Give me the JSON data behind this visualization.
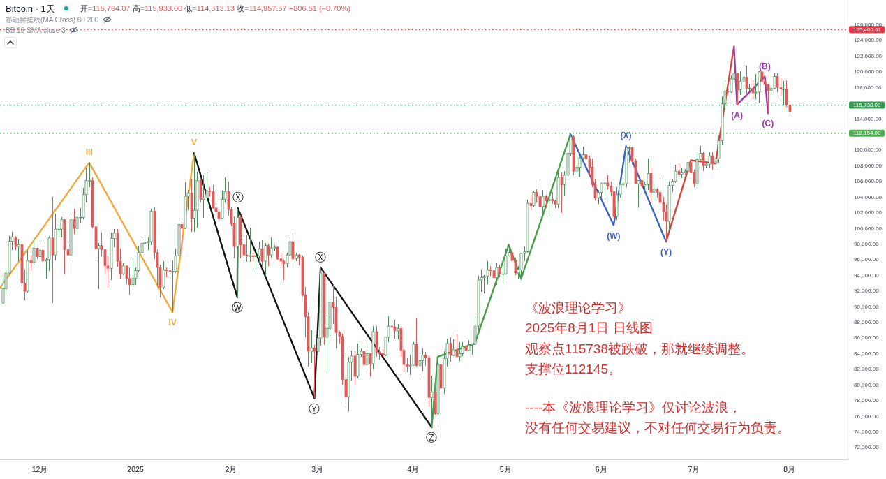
{
  "chart_data": {
    "type": "candlestick",
    "title": "Bitcoin · 1天",
    "subtitle": "开=115,764.07 高=115,933.00 低=114,313.13 收=114,957.57 −806.51 (−0.70%)",
    "xlim": [
      "2024-11-18T02:00",
      "2025-08-19T20:00"
    ],
    "ylim": [
      70480,
      129170
    ],
    "xticks": [
      {
        "value": "2024-12-01",
        "label": "12月"
      },
      {
        "value": "2025-01-01",
        "label": "2025"
      },
      {
        "value": "2025-02-01",
        "label": "2月"
      },
      {
        "value": "2025-03-01",
        "label": "3月"
      },
      {
        "value": "2025-04-01",
        "label": "4月"
      },
      {
        "value": "2025-05-01",
        "label": "5月"
      },
      {
        "value": "2025-06-01",
        "label": "6月"
      },
      {
        "value": "2025-07-01",
        "label": "7月"
      },
      {
        "value": "2025-08-01",
        "label": "8月"
      }
    ],
    "yticks": [
      {
        "value": 72000,
        "label": "72,000.00"
      },
      {
        "value": 74000,
        "label": "74,000.00"
      },
      {
        "value": 76000,
        "label": "76,000.00"
      },
      {
        "value": 78000,
        "label": "78,000.00"
      },
      {
        "value": 80000,
        "label": "80,000.00"
      },
      {
        "value": 82000,
        "label": "82,000.00"
      },
      {
        "value": 84000,
        "label": "84,000.00"
      },
      {
        "value": 86000,
        "label": "86,000.00"
      },
      {
        "value": 88000,
        "label": "88,000.00"
      },
      {
        "value": 90000,
        "label": "90,000.00"
      },
      {
        "value": 92000,
        "label": "92,000.00"
      },
      {
        "value": 94000,
        "label": "94,000.00"
      },
      {
        "value": 96000,
        "label": "96,000.00"
      },
      {
        "value": 98000,
        "label": "98,000.00"
      },
      {
        "value": 100000,
        "label": "100,000.00"
      },
      {
        "value": 102000,
        "label": "102,000.00"
      },
      {
        "value": 104000,
        "label": "104,000.00"
      },
      {
        "value": 106000,
        "label": "106,000.00"
      },
      {
        "value": 108000,
        "label": "108,000.00"
      },
      {
        "value": 110000,
        "label": "110,000.00"
      },
      {
        "value": 114000,
        "label": "114,000.00"
      },
      {
        "value": 118000,
        "label": "118,000.00"
      },
      {
        "value": 120000,
        "label": "120,000.00"
      },
      {
        "value": 122000,
        "label": "122,000.00"
      },
      {
        "value": 124000,
        "label": "124,000.00"
      },
      {
        "value": 126000,
        "label": "126,000.00"
      }
    ],
    "x": [
      "2024-11-19",
      "2024-11-20",
      "2024-11-21",
      "2024-11-22",
      "2024-11-23",
      "2024-11-24",
      "2024-11-25",
      "2024-11-26",
      "2024-11-27",
      "2024-11-28",
      "2024-11-29",
      "2024-11-30",
      "2024-12-01",
      "2024-12-02",
      "2024-12-03",
      "2024-12-04",
      "2024-12-05",
      "2024-12-06",
      "2024-12-07",
      "2024-12-08",
      "2024-12-09",
      "2024-12-10",
      "2024-12-11",
      "2024-12-12",
      "2024-12-13",
      "2024-12-14",
      "2024-12-15",
      "2024-12-16",
      "2024-12-17",
      "2024-12-18",
      "2024-12-19",
      "2024-12-20",
      "2024-12-21",
      "2024-12-22",
      "2024-12-23",
      "2024-12-24",
      "2024-12-25",
      "2024-12-26",
      "2024-12-27",
      "2024-12-28",
      "2024-12-29",
      "2024-12-30",
      "2024-12-31",
      "2025-01-01",
      "2025-01-02",
      "2025-01-03",
      "2025-01-04",
      "2025-01-05",
      "2025-01-06",
      "2025-01-07",
      "2025-01-08",
      "2025-01-09",
      "2025-01-10",
      "2025-01-11",
      "2025-01-12",
      "2025-01-13",
      "2025-01-14",
      "2025-01-15",
      "2025-01-16",
      "2025-01-17",
      "2025-01-18",
      "2025-01-19",
      "2025-01-20",
      "2025-01-21",
      "2025-01-22",
      "2025-01-23",
      "2025-01-24",
      "2025-01-25",
      "2025-01-26",
      "2025-01-27",
      "2025-01-28",
      "2025-01-29",
      "2025-01-30",
      "2025-01-31",
      "2025-02-01",
      "2025-02-02",
      "2025-02-03",
      "2025-02-04",
      "2025-02-05",
      "2025-02-06",
      "2025-02-07",
      "2025-02-08",
      "2025-02-09",
      "2025-02-10",
      "2025-02-11",
      "2025-02-12",
      "2025-02-13",
      "2025-02-14",
      "2025-02-15",
      "2025-02-16",
      "2025-02-17",
      "2025-02-18",
      "2025-02-19",
      "2025-02-20",
      "2025-02-21",
      "2025-02-22",
      "2025-02-23",
      "2025-02-24",
      "2025-02-25",
      "2025-02-26",
      "2025-02-27",
      "2025-02-28",
      "2025-03-01",
      "2025-03-02",
      "2025-03-03",
      "2025-03-04",
      "2025-03-05",
      "2025-03-06",
      "2025-03-07",
      "2025-03-08",
      "2025-03-09",
      "2025-03-10",
      "2025-03-11",
      "2025-03-12",
      "2025-03-13",
      "2025-03-14",
      "2025-03-15",
      "2025-03-16",
      "2025-03-17",
      "2025-03-18",
      "2025-03-19",
      "2025-03-20",
      "2025-03-21",
      "2025-03-22",
      "2025-03-23",
      "2025-03-24",
      "2025-03-25",
      "2025-03-26",
      "2025-03-27",
      "2025-03-28",
      "2025-03-29",
      "2025-03-30",
      "2025-03-31",
      "2025-04-01",
      "2025-04-02",
      "2025-04-03",
      "2025-04-04",
      "2025-04-05",
      "2025-04-06",
      "2025-04-07",
      "2025-04-08",
      "2025-04-09",
      "2025-04-10",
      "2025-04-11",
      "2025-04-12",
      "2025-04-13",
      "2025-04-14",
      "2025-04-15",
      "2025-04-16",
      "2025-04-17",
      "2025-04-18",
      "2025-04-19",
      "2025-04-20",
      "2025-04-21",
      "2025-04-22",
      "2025-04-23",
      "2025-04-24",
      "2025-04-25",
      "2025-04-26",
      "2025-04-27",
      "2025-04-28",
      "2025-04-29",
      "2025-04-30",
      "2025-05-01",
      "2025-05-02",
      "2025-05-03",
      "2025-05-04",
      "2025-05-05",
      "2025-05-06",
      "2025-05-07",
      "2025-05-08",
      "2025-05-09",
      "2025-05-10",
      "2025-05-11",
      "2025-05-12",
      "2025-05-13",
      "2025-05-14",
      "2025-05-15",
      "2025-05-16",
      "2025-05-17",
      "2025-05-18",
      "2025-05-19",
      "2025-05-20",
      "2025-05-21",
      "2025-05-22",
      "2025-05-23",
      "2025-05-24",
      "2025-05-25",
      "2025-05-26",
      "2025-05-27",
      "2025-05-28",
      "2025-05-29",
      "2025-05-30",
      "2025-05-31",
      "2025-06-01",
      "2025-06-02",
      "2025-06-03",
      "2025-06-04",
      "2025-06-05",
      "2025-06-06",
      "2025-06-07",
      "2025-06-08",
      "2025-06-09",
      "2025-06-10",
      "2025-06-11",
      "2025-06-12",
      "2025-06-13",
      "2025-06-14",
      "2025-06-15",
      "2025-06-16",
      "2025-06-17",
      "2025-06-18",
      "2025-06-19",
      "2025-06-20",
      "2025-06-21",
      "2025-06-22",
      "2025-06-23",
      "2025-06-24",
      "2025-06-25",
      "2025-06-26",
      "2025-06-27",
      "2025-06-28",
      "2025-06-29",
      "2025-06-30",
      "2025-07-01",
      "2025-07-02",
      "2025-07-03",
      "2025-07-04",
      "2025-07-05",
      "2025-07-06",
      "2025-07-07",
      "2025-07-08",
      "2025-07-09",
      "2025-07-10",
      "2025-07-11",
      "2025-07-12",
      "2025-07-13",
      "2025-07-14",
      "2025-07-15",
      "2025-07-16",
      "2025-07-17",
      "2025-07-18",
      "2025-07-19",
      "2025-07-20",
      "2025-07-21",
      "2025-07-22",
      "2025-07-23",
      "2025-07-24",
      "2025-07-25",
      "2025-07-26",
      "2025-07-27",
      "2025-07-28",
      "2025-07-29",
      "2025-07-30",
      "2025-07-31",
      "2025-08-01"
    ],
    "ohlc": [
      [
        90470,
        94000,
        90400,
        92300
      ],
      [
        92300,
        94900,
        91500,
        94290
      ],
      [
        94290,
        99000,
        94100,
        98350
      ],
      [
        98350,
        99600,
        97200,
        98900
      ],
      [
        98900,
        99000,
        97200,
        97700
      ],
      [
        97700,
        98600,
        95800,
        97900
      ],
      [
        97900,
        98900,
        92600,
        93000
      ],
      [
        93000,
        94700,
        90800,
        91970
      ],
      [
        91970,
        97200,
        91800,
        95900
      ],
      [
        95900,
        96650,
        94600,
        95640
      ],
      [
        95640,
        98700,
        95300,
        97460
      ],
      [
        97460,
        97500,
        96100,
        96400
      ],
      [
        96400,
        98000,
        95700,
        97200
      ],
      [
        97200,
        98200,
        94200,
        95840
      ],
      [
        95840,
        96300,
        93600,
        96000
      ],
      [
        96000,
        99000,
        94600,
        98770
      ],
      [
        98770,
        104000,
        90500,
        96600
      ],
      [
        96600,
        101900,
        95900,
        99900
      ],
      [
        99900,
        100500,
        98800,
        99900
      ],
      [
        99900,
        101400,
        98800,
        101100
      ],
      [
        101100,
        101200,
        94200,
        97300
      ],
      [
        97300,
        98300,
        94200,
        96600
      ],
      [
        96600,
        101900,
        95700,
        101100
      ],
      [
        101100,
        102500,
        99300,
        100000
      ],
      [
        100000,
        101900,
        99200,
        101400
      ],
      [
        101400,
        102600,
        100600,
        101400
      ],
      [
        101400,
        105200,
        101200,
        104300
      ],
      [
        104300,
        107800,
        103300,
        106100
      ],
      [
        106100,
        108350,
        105300,
        106100
      ],
      [
        106100,
        106500,
        100000,
        100200
      ],
      [
        100200,
        102800,
        95700,
        97400
      ],
      [
        97400,
        98100,
        92200,
        97800
      ],
      [
        97800,
        99500,
        96400,
        97300
      ],
      [
        97300,
        97400,
        94200,
        95200
      ],
      [
        95200,
        96400,
        92400,
        94900
      ],
      [
        94900,
        99500,
        93400,
        98700
      ],
      [
        98700,
        99900,
        97600,
        99400
      ],
      [
        99400,
        99900,
        95100,
        95800
      ],
      [
        95800,
        97400,
        93500,
        94200
      ],
      [
        94200,
        95500,
        94000,
        95200
      ],
      [
        95200,
        95200,
        92900,
        93600
      ],
      [
        93600,
        95000,
        91500,
        92800
      ],
      [
        92800,
        96200,
        92500,
        93600
      ],
      [
        93600,
        95000,
        92800,
        94600
      ],
      [
        94600,
        97800,
        94400,
        96900
      ],
      [
        96900,
        98900,
        96000,
        98100
      ],
      [
        98100,
        98800,
        97300,
        98200
      ],
      [
        98200,
        98800,
        97200,
        98300
      ],
      [
        98300,
        102500,
        97900,
        102200
      ],
      [
        102200,
        102700,
        96100,
        96900
      ],
      [
        96900,
        97300,
        92500,
        95000
      ],
      [
        95000,
        95400,
        91200,
        92500
      ],
      [
        92500,
        95800,
        92200,
        94700
      ],
      [
        94700,
        95000,
        93800,
        94600
      ],
      [
        94600,
        95400,
        93700,
        94500
      ],
      [
        94500,
        95900,
        89300,
        94500
      ],
      [
        94500,
        97400,
        94300,
        96500
      ],
      [
        96500,
        100700,
        96500,
        100500
      ],
      [
        100500,
        100800,
        97300,
        100000
      ],
      [
        100000,
        105900,
        99900,
        104100
      ],
      [
        104100,
        104900,
        102300,
        104500
      ],
      [
        104500,
        106300,
        99600,
        101300
      ],
      [
        101300,
        109600,
        99600,
        102300
      ],
      [
        102300,
        107200,
        100100,
        106100
      ],
      [
        106100,
        106400,
        103300,
        103700
      ],
      [
        103700,
        106800,
        101300,
        103900
      ],
      [
        103900,
        107100,
        102800,
        104800
      ],
      [
        104800,
        105300,
        104100,
        104700
      ],
      [
        104700,
        105500,
        102500,
        102600
      ],
      [
        102600,
        103200,
        97800,
        102100
      ],
      [
        102100,
        103800,
        100300,
        101300
      ],
      [
        101300,
        104800,
        101300,
        103700
      ],
      [
        103700,
        106500,
        103300,
        104700
      ],
      [
        104700,
        106000,
        101600,
        102400
      ],
      [
        102400,
        102800,
        100300,
        100600
      ],
      [
        100600,
        101500,
        96200,
        97700
      ],
      [
        97700,
        102500,
        91200,
        101400
      ],
      [
        101400,
        101700,
        96200,
        97900
      ],
      [
        97900,
        99000,
        96200,
        96600
      ],
      [
        96600,
        99200,
        95700,
        96500
      ],
      [
        96500,
        100100,
        95700,
        96500
      ],
      [
        96500,
        96900,
        95700,
        96400
      ],
      [
        96400,
        97300,
        94700,
        96500
      ],
      [
        96500,
        98300,
        95300,
        97400
      ],
      [
        97400,
        98500,
        94900,
        95800
      ],
      [
        95800,
        98100,
        94100,
        97800
      ],
      [
        97800,
        98000,
        95200,
        96600
      ],
      [
        96600,
        98800,
        96300,
        97500
      ],
      [
        97500,
        97900,
        97100,
        97600
      ],
      [
        97600,
        97700,
        96000,
        96100
      ],
      [
        96100,
        97000,
        95200,
        95800
      ],
      [
        95800,
        96000,
        93400,
        95500
      ],
      [
        95500,
        96900,
        95000,
        96600
      ],
      [
        96600,
        98800,
        96400,
        98300
      ],
      [
        98300,
        99500,
        94900,
        96100
      ],
      [
        96100,
        96900,
        95800,
        96600
      ],
      [
        96600,
        96700,
        95300,
        96300
      ],
      [
        96300,
        96500,
        91300,
        91500
      ],
      [
        91500,
        92500,
        86100,
        88700
      ],
      [
        88700,
        89300,
        82300,
        84300
      ],
      [
        84300,
        87000,
        82800,
        84700
      ],
      [
        84700,
        85100,
        78300,
        84300
      ],
      [
        84300,
        86600,
        83800,
        86000
      ],
      [
        86000,
        95000,
        85000,
        94300
      ],
      [
        94300,
        94400,
        85100,
        86100
      ],
      [
        86100,
        88900,
        81500,
        87200
      ],
      [
        87200,
        91000,
        86300,
        90600
      ],
      [
        90600,
        92800,
        87800,
        89900
      ],
      [
        89900,
        91300,
        84700,
        86700
      ],
      [
        86700,
        86900,
        85300,
        86200
      ],
      [
        86200,
        86500,
        80000,
        80700
      ],
      [
        80700,
        84100,
        77500,
        78500
      ],
      [
        78500,
        83600,
        76600,
        82900
      ],
      [
        82900,
        84400,
        80600,
        83700
      ],
      [
        83700,
        84300,
        79900,
        81100
      ],
      [
        81100,
        85300,
        80800,
        83900
      ],
      [
        83900,
        84700,
        83600,
        84300
      ],
      [
        84300,
        85000,
        82000,
        82600
      ],
      [
        82600,
        84800,
        82500,
        84000
      ],
      [
        84000,
        84000,
        81100,
        82700
      ],
      [
        82700,
        87500,
        82000,
        86800
      ],
      [
        86800,
        87500,
        83600,
        84200
      ],
      [
        84200,
        84800,
        83200,
        84000
      ],
      [
        84000,
        84600,
        83600,
        83800
      ],
      [
        83800,
        86100,
        83700,
        86100
      ],
      [
        86100,
        88800,
        85500,
        87500
      ],
      [
        87500,
        88500,
        86300,
        87400
      ],
      [
        87400,
        88300,
        85900,
        86900
      ],
      [
        86900,
        87800,
        85800,
        87200
      ],
      [
        87200,
        87500,
        83600,
        84400
      ],
      [
        84400,
        84600,
        81600,
        82600
      ],
      [
        82600,
        83500,
        81600,
        82400
      ],
      [
        82400,
        83900,
        81300,
        82500
      ],
      [
        82500,
        85500,
        82400,
        85200
      ],
      [
        85200,
        88500,
        82300,
        82500
      ],
      [
        82500,
        83900,
        81200,
        83100
      ],
      [
        83100,
        84700,
        81700,
        83800
      ],
      [
        83800,
        84200,
        82400,
        83500
      ],
      [
        83500,
        83800,
        77200,
        78400
      ],
      [
        78400,
        81200,
        74500,
        79100
      ],
      [
        79100,
        80800,
        76200,
        76300
      ],
      [
        76300,
        83600,
        74600,
        82600
      ],
      [
        82600,
        82700,
        78500,
        79600
      ],
      [
        79600,
        84300,
        78900,
        83400
      ],
      [
        83400,
        85900,
        82300,
        85300
      ],
      [
        85300,
        86100,
        83000,
        83800
      ],
      [
        83800,
        85800,
        83700,
        84500
      ],
      [
        84500,
        86500,
        83600,
        83600
      ],
      [
        83600,
        85500,
        83100,
        84000
      ],
      [
        84000,
        85500,
        83700,
        84900
      ],
      [
        84900,
        85100,
        84300,
        84400
      ],
      [
        84400,
        85700,
        84300,
        85100
      ],
      [
        85100,
        85300,
        83900,
        85200
      ],
      [
        85200,
        88800,
        85100,
        87500
      ],
      [
        87500,
        93900,
        87000,
        93400
      ],
      [
        93400,
        94700,
        91900,
        93700
      ],
      [
        93700,
        94000,
        91700,
        93900
      ],
      [
        93900,
        95800,
        92900,
        94700
      ],
      [
        94700,
        95200,
        93900,
        94600
      ],
      [
        94600,
        95300,
        93600,
        93700
      ],
      [
        93700,
        95600,
        92800,
        95000
      ],
      [
        95000,
        95400,
        93800,
        94200
      ],
      [
        94200,
        95400,
        92900,
        94200
      ],
      [
        94200,
        97400,
        94100,
        96500
      ],
      [
        96500,
        97900,
        96400,
        96900
      ],
      [
        96900,
        96900,
        95800,
        95900
      ],
      [
        95900,
        96300,
        94000,
        94300
      ],
      [
        94300,
        95200,
        93500,
        94700
      ],
      [
        94700,
        96900,
        93400,
        96800
      ],
      [
        96800,
        97700,
        95800,
        97000
      ],
      [
        97000,
        103700,
        96900,
        103200
      ],
      [
        103200,
        104300,
        102300,
        102900
      ],
      [
        102900,
        104800,
        102800,
        104600
      ],
      [
        104600,
        105000,
        103300,
        104100
      ],
      [
        104100,
        105800,
        100700,
        102800
      ],
      [
        102800,
        104900,
        101500,
        104100
      ],
      [
        104100,
        104300,
        102600,
        103500
      ],
      [
        103500,
        104200,
        101400,
        103700
      ],
      [
        103700,
        104600,
        103100,
        103500
      ],
      [
        103500,
        103700,
        102600,
        103100
      ],
      [
        103100,
        107100,
        102600,
        106500
      ],
      [
        106500,
        107100,
        102000,
        105600
      ],
      [
        105600,
        107300,
        104200,
        106800
      ],
      [
        106800,
        110800,
        106100,
        109600
      ],
      [
        109600,
        112000,
        109200,
        111700
      ],
      [
        111700,
        111900,
        106800,
        107300
      ],
      [
        107300,
        109500,
        106900,
        107800
      ],
      [
        107800,
        109300,
        106600,
        109000
      ],
      [
        109000,
        110400,
        108700,
        109400
      ],
      [
        109400,
        110700,
        107500,
        108900
      ],
      [
        108900,
        109300,
        106800,
        107800
      ],
      [
        107800,
        108900,
        105300,
        105600
      ],
      [
        105600,
        106300,
        103600,
        103900
      ],
      [
        103900,
        104900,
        103100,
        104600
      ],
      [
        104600,
        105900,
        103900,
        105700
      ],
      [
        105700,
        105900,
        103700,
        105800
      ],
      [
        105800,
        106800,
        105000,
        105400
      ],
      [
        105400,
        106000,
        104100,
        104700
      ],
      [
        104700,
        105900,
        100400,
        101500
      ],
      [
        101500,
        105300,
        101100,
        104300
      ],
      [
        104300,
        105900,
        103900,
        105600
      ],
      [
        105600,
        106500,
        105100,
        105700
      ],
      [
        105700,
        110500,
        105300,
        110300
      ],
      [
        110300,
        110400,
        108400,
        110300
      ],
      [
        110300,
        110400,
        108100,
        108600
      ],
      [
        108600,
        108900,
        105700,
        105700
      ],
      [
        105700,
        106200,
        102700,
        106100
      ],
      [
        106100,
        106200,
        104300,
        105400
      ],
      [
        105400,
        106000,
        104500,
        105600
      ],
      [
        105600,
        108900,
        104900,
        107000
      ],
      [
        107000,
        107800,
        103400,
        104600
      ],
      [
        104600,
        105600,
        103500,
        105000
      ],
      [
        105000,
        105200,
        103900,
        104600
      ],
      [
        104600,
        106500,
        102300,
        103300
      ],
      [
        103300,
        104000,
        101000,
        102100
      ],
      [
        102100,
        103000,
        98200,
        100900
      ],
      [
        100900,
        106000,
        99600,
        105500
      ],
      [
        105500,
        106300,
        104600,
        106000
      ],
      [
        106000,
        108100,
        105800,
        107300
      ],
      [
        107300,
        108300,
        106600,
        106900
      ],
      [
        106900,
        107800,
        106400,
        107100
      ],
      [
        107100,
        107600,
        106900,
        107300
      ],
      [
        107300,
        108500,
        107200,
        108400
      ],
      [
        108400,
        108800,
        106800,
        107100
      ],
      [
        107100,
        107500,
        105300,
        105700
      ],
      [
        105700,
        109800,
        105100,
        108800
      ],
      [
        108800,
        110500,
        108600,
        109600
      ],
      [
        109600,
        109800,
        107300,
        108000
      ],
      [
        108000,
        108400,
        107800,
        108200
      ],
      [
        108200,
        109700,
        107800,
        109200
      ],
      [
        109200,
        109700,
        107500,
        108300
      ],
      [
        108300,
        109200,
        107400,
        108900
      ],
      [
        108900,
        111900,
        108400,
        111200
      ],
      [
        111200,
        116900,
        110600,
        115900
      ],
      [
        115900,
        118900,
        115200,
        117500
      ],
      [
        117500,
        118200,
        116900,
        117400
      ],
      [
        117400,
        119500,
        117300,
        119100
      ],
      [
        119100,
        123200,
        118900,
        119800
      ],
      [
        119800,
        119900,
        115700,
        117700
      ],
      [
        117700,
        120100,
        117000,
        118800
      ],
      [
        118800,
        120900,
        117800,
        119300
      ],
      [
        119300,
        120800,
        116800,
        117900
      ],
      [
        117900,
        118500,
        117500,
        117900
      ],
      [
        117900,
        118900,
        116500,
        117300
      ],
      [
        117300,
        119700,
        116500,
        117400
      ],
      [
        117400,
        120200,
        116100,
        120000
      ],
      [
        120000,
        120200,
        117300,
        118800
      ],
      [
        118800,
        119500,
        117500,
        118400
      ],
      [
        118400,
        118500,
        114700,
        117600
      ],
      [
        117600,
        118300,
        117200,
        117900
      ],
      [
        117900,
        119800,
        117800,
        119400
      ],
      [
        119400,
        119800,
        117400,
        118000
      ],
      [
        118000,
        119300,
        116900,
        117800
      ],
      [
        117800,
        118800,
        115700,
        117800
      ],
      [
        117800,
        118900,
        115500,
        115800
      ],
      [
        115764.07,
        115933,
        114313.13,
        114957.57
      ]
    ],
    "colors": [
      "#4b8f5b",
      "#4b8f5b",
      "#4b8f5b",
      "#4b8f5b",
      "#e05a5a",
      "#4b8f5b",
      "#e05a5a",
      "#e05a5a",
      "#4b8f5b",
      "#e05a5a",
      "#4b8f5b",
      "#e05a5a",
      "#4b8f5b",
      "#e05a5a",
      "#4b8f5b",
      "#4b8f5b",
      "#e05a5a",
      "#4b8f5b",
      "#4b8f5b",
      "#4b8f5b",
      "#e05a5a",
      "#e05a5a",
      "#4b8f5b",
      "#e05a5a",
      "#4b8f5b",
      "#4b8f5b",
      "#4b8f5b",
      "#4b8f5b",
      "#4b8f5b",
      "#e05a5a",
      "#e05a5a",
      "#4b8f5b",
      "#e05a5a",
      "#e05a5a",
      "#e05a5a",
      "#4b8f5b",
      "#4b8f5b",
      "#e05a5a",
      "#e05a5a",
      "#4b8f5b",
      "#e05a5a",
      "#e05a5a",
      "#4b8f5b",
      "#4b8f5b",
      "#4b8f5b",
      "#4b8f5b",
      "#4b8f5b",
      "#4b8f5b",
      "#4b8f5b",
      "#e05a5a",
      "#e05a5a",
      "#e05a5a",
      "#4b8f5b",
      "#e05a5a",
      "#e05a5a",
      "#4b8f5b",
      "#4b8f5b",
      "#4b8f5b",
      "#e05a5a",
      "#4b8f5b",
      "#4b8f5b",
      "#e05a5a",
      "#4b8f5b",
      "#4b8f5b",
      "#e05a5a",
      "#4b8f5b",
      "#4b8f5b",
      "#e05a5a",
      "#e05a5a",
      "#e05a5a",
      "#e05a5a",
      "#4b8f5b",
      "#4b8f5b",
      "#e05a5a",
      "#e05a5a",
      "#e05a5a",
      "#4b8f5b",
      "#e05a5a",
      "#e05a5a",
      "#e05a5a",
      "#4b8f5b",
      "#e05a5a",
      "#4b8f5b",
      "#4b8f5b",
      "#e05a5a",
      "#4b8f5b",
      "#e05a5a",
      "#4b8f5b",
      "#4b8f5b",
      "#e05a5a",
      "#e05a5a",
      "#e05a5a",
      "#4b8f5b",
      "#4b8f5b",
      "#e05a5a",
      "#4b8f5b",
      "#e05a5a",
      "#e05a5a",
      "#e05a5a",
      "#e05a5a",
      "#4b8f5b",
      "#e05a5a",
      "#4b8f5b",
      "#4b8f5b",
      "#e05a5a",
      "#4b8f5b",
      "#4b8f5b",
      "#e05a5a",
      "#e05a5a",
      "#e05a5a",
      "#e05a5a",
      "#e05a5a",
      "#4b8f5b",
      "#4b8f5b",
      "#e05a5a",
      "#4b8f5b",
      "#4b8f5b",
      "#e05a5a",
      "#4b8f5b",
      "#e05a5a",
      "#4b8f5b",
      "#e05a5a",
      "#e05a5a",
      "#e05a5a",
      "#4b8f5b",
      "#4b8f5b",
      "#e05a5a",
      "#e05a5a",
      "#4b8f5b",
      "#e05a5a",
      "#e05a5a",
      "#e05a5a",
      "#4b8f5b",
      "#4b8f5b",
      "#e05a5a",
      "#4b8f5b",
      "#4b8f5b",
      "#e05a5a",
      "#e05a5a",
      "#4b8f5b",
      "#e05a5a",
      "#4b8f5b",
      "#e05a5a",
      "#4b8f5b",
      "#4b8f5b",
      "#e05a5a",
      "#4b8f5b",
      "#e05a5a",
      "#4b8f5b",
      "#4b8f5b",
      "#e05a5a",
      "#4b8f5b",
      "#4b8f5b",
      "#4b8f5b",
      "#4b8f5b",
      "#4b8f5b",
      "#4b8f5b",
      "#4b8f5b",
      "#e05a5a",
      "#e05a5a",
      "#4b8f5b",
      "#e05a5a",
      "#4b8f5b",
      "#4b8f5b",
      "#4b8f5b",
      "#e05a5a",
      "#e05a5a",
      "#4b8f5b",
      "#4b8f5b",
      "#4b8f5b",
      "#4b8f5b",
      "#e05a5a",
      "#4b8f5b",
      "#e05a5a",
      "#e05a5a",
      "#4b8f5b",
      "#e05a5a",
      "#4b8f5b",
      "#e05a5a",
      "#e05a5a",
      "#4b8f5b",
      "#e05a5a",
      "#4b8f5b",
      "#4b8f5b",
      "#4b8f5b",
      "#e05a5a",
      "#4b8f5b",
      "#4b8f5b",
      "#4b8f5b",
      "#e05a5a",
      "#e05a5a",
      "#e05a5a",
      "#e05a5a",
      "#4b8f5b",
      "#4b8f5b",
      "#4b8f5b",
      "#e05a5a",
      "#e05a5a",
      "#e05a5a",
      "#4b8f5b",
      "#4b8f5b",
      "#4b8f5b",
      "#4b8f5b",
      "#4b8f5b",
      "#e05a5a",
      "#e05a5a",
      "#4b8f5b",
      "#e05a5a",
      "#4b8f5b",
      "#4b8f5b",
      "#e05a5a",
      "#4b8f5b",
      "#e05a5a",
      "#e05a5a",
      "#e05a5a",
      "#e05a5a",
      "#4b8f5b",
      "#4b8f5b",
      "#4b8f5b",
      "#e05a5a",
      "#4b8f5b",
      "#4b8f5b",
      "#4b8f5b",
      "#e05a5a",
      "#e05a5a",
      "#4b8f5b",
      "#4b8f5b",
      "#e05a5a",
      "#4b8f5b",
      "#4b8f5b",
      "#e05a5a",
      "#4b8f5b",
      "#4b8f5b",
      "#4b8f5b",
      "#4b8f5b",
      "#e05a5a",
      "#4b8f5b",
      "#4b8f5b",
      "#e05a5a",
      "#4b8f5b",
      "#4b8f5b",
      "#e05a5a",
      "#4b8f5b",
      "#e05a5a",
      "#4b8f5b",
      "#4b8f5b",
      "#e05a5a",
      "#e05a5a",
      "#e05a5a",
      "#4b8f5b",
      "#4b8f5b",
      "#e05a5a",
      "#e05a5a",
      "#4b8f5b",
      "#e05a5a",
      "#e05a5a"
    ],
    "series": [
      {
        "type": "line",
        "color": "#f2a93b",
        "x": [
          "2024-11-18T02:00",
          "2024-12-17",
          "2025-01-13",
          "2025-01-20"
        ],
        "values": [
          92400,
          108400,
          89300,
          109600
        ]
      },
      {
        "type": "line",
        "color": "#141414",
        "x": [
          "2025-01-20",
          "2025-02-03",
          "2025-02-03T04:00",
          "2025-02-28",
          "2025-03-02",
          "2025-04-07"
        ],
        "values": [
          109600,
          91200,
          102600,
          78300,
          95000,
          74600
        ]
      },
      {
        "type": "line",
        "color": "#43a047",
        "x": [
          "2025-04-07",
          "2025-04-09",
          "2025-04-21",
          "2025-05-02",
          "2025-05-06",
          "2025-05-22"
        ],
        "values": [
          74600,
          83600,
          85300,
          97900,
          93600,
          112000
        ]
      },
      {
        "type": "line",
        "color": "#3a62c0",
        "x": [
          "2025-05-22",
          "2025-06-05",
          "2025-06-09",
          "2025-06-22"
        ],
        "values": [
          112000,
          100400,
          110500,
          98300
        ]
      },
      {
        "type": "line",
        "color": "#d9443c",
        "x": [
          "2025-06-22",
          "2025-06-30",
          "2025-07-08",
          "2025-07-14"
        ],
        "values": [
          98300,
          108700,
          108300,
          123200
        ]
      },
      {
        "type": "line",
        "color": "#9c3ca8",
        "x": [
          "2025-07-14",
          "2025-07-15",
          "2025-07-24",
          "2025-07-25"
        ],
        "values": [
          123200,
          115800,
          119400,
          114700
        ]
      }
    ],
    "ref_lines": [
      {
        "axis": "y",
        "value": 125400.61,
        "label": "125,400.61",
        "color": "#f23645",
        "line_style": "dotted"
      },
      {
        "axis": "y",
        "value": 115738,
        "label": "115,738.00",
        "color": "#2e9e4f",
        "line_style": "dotted"
      },
      {
        "axis": "y",
        "value": 112154,
        "label": "112,154.00",
        "color": "#4caf50",
        "line_style": "dotted"
      }
    ],
    "annotations": [
      "移动揉搓线(MA Cross) 60 200",
      "BB 18 SMA close 3",
      "《波浪理论学习》",
      "2025年8月1日 日线图",
      "观察点115738被跌破，那就继续调整。",
      "支撑位112145。",
      "----本《波浪理论学习》仅讨论波浪，",
      "没有任何交易建议，不对任何交易行为负责。",
      {
        "text": "III",
        "x": "2024-12-17",
        "y": 108400
      },
      {
        "text": "IV",
        "x": "2025-01-13",
        "y": 89300
      },
      {
        "text": "V",
        "x": "2025-01-20",
        "y": 109600
      },
      {
        "text": "Ⓦ",
        "x": "2025-02-03",
        "y": 91200
      },
      {
        "text": "Ⓧ",
        "x": "2025-02-03T04:00",
        "y": 102600
      },
      {
        "text": "Ⓨ",
        "x": "2025-02-28",
        "y": 78300
      },
      {
        "text": "Ⓧ",
        "x": "2025-03-02",
        "y": 95000
      },
      {
        "text": "Ⓩ",
        "x": "2025-04-07",
        "y": 74600
      },
      {
        "text": "(W)",
        "x": "2025-06-05",
        "y": 100400
      },
      {
        "text": "(X)",
        "x": "2025-06-09",
        "y": 110500
      },
      {
        "text": "(Y)",
        "x": "2025-06-22",
        "y": 98300
      },
      {
        "text": "(A)",
        "x": "2025-07-15",
        "y": 115800
      },
      {
        "text": "(B)",
        "x": "2025-07-24",
        "y": 119400
      },
      {
        "text": "(C)",
        "x": "2025-07-25",
        "y": 114700
      }
    ]
  }
}
